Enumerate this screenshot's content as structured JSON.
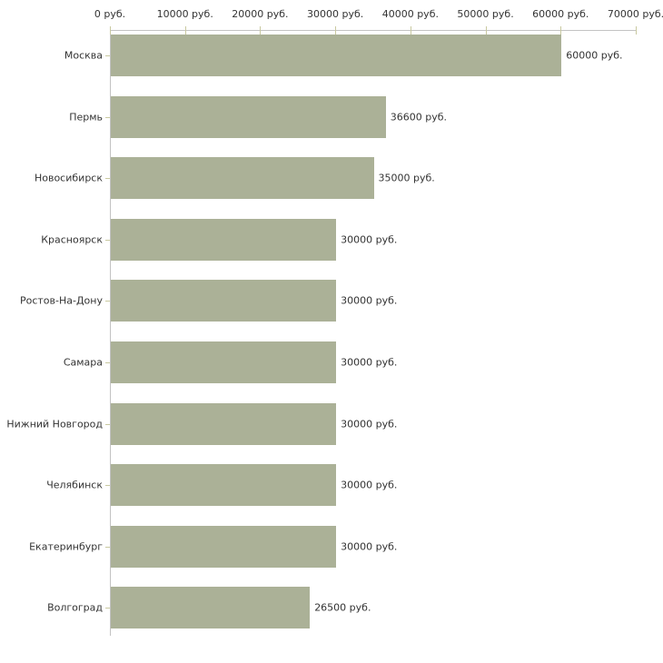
{
  "chart_data": {
    "type": "bar",
    "orientation": "horizontal",
    "title": "",
    "xlabel": "",
    "ylabel": "",
    "grid": false,
    "legend": null,
    "categories": [
      "Москва",
      "Пермь",
      "Новосибирск",
      "Красноярск",
      "Ростов-На-Дону",
      "Самара",
      "Нижний Новгород",
      "Челябинск",
      "Екатеринбург",
      "Волгоград"
    ],
    "values": [
      60000,
      36600,
      35000,
      30000,
      30000,
      30000,
      30000,
      30000,
      30000,
      26500
    ],
    "value_labels": [
      "60000 руб.",
      "36600 руб.",
      "35000 руб.",
      "30000 руб.",
      "30000 руб.",
      "30000 руб.",
      "30000 руб.",
      "30000 руб.",
      "30000 руб.",
      "26500 руб."
    ],
    "xlim": [
      0,
      70000
    ],
    "x_ticks": [
      0,
      10000,
      20000,
      30000,
      40000,
      50000,
      60000,
      70000
    ],
    "x_tick_labels": [
      "0 руб.",
      "10000 руб.",
      "20000 руб.",
      "30000 руб.",
      "40000 руб.",
      "50000 руб.",
      "60000 руб.",
      "70000 руб."
    ],
    "colors": {
      "bar": "#abb197",
      "axis_line": "#c3c3c3",
      "tick_mark": "#c9c9a0",
      "text": "#333333",
      "background": "#ffffff"
    }
  }
}
